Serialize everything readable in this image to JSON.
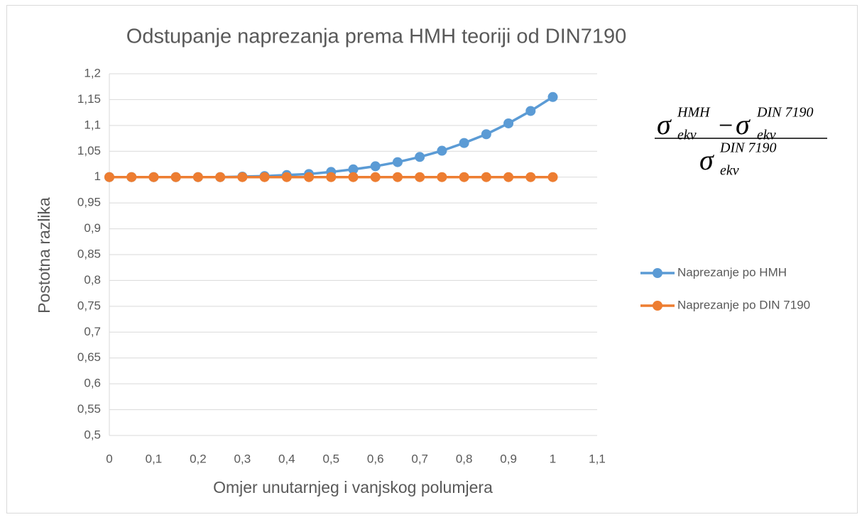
{
  "chart_data": {
    "type": "line",
    "title": "Odstupanje naprezanja prema HMH teoriji od DIN7190",
    "xlabel": "Omjer unutarnjeg i vanjskog polumjera",
    "ylabel": "Postotna razlika",
    "x": [
      0,
      0.05,
      0.1,
      0.15,
      0.2,
      0.25,
      0.3,
      0.35,
      0.4,
      0.45,
      0.5,
      0.55,
      0.6,
      0.65,
      0.7,
      0.75,
      0.8,
      0.85,
      0.9,
      0.95,
      1
    ],
    "series": [
      {
        "name": "Naprezanje po HMH",
        "color": "#5b9bd5",
        "values": [
          1,
          1,
          1,
          1,
          1,
          1,
          1.001,
          1.002,
          1.004,
          1.006,
          1.01,
          1.015,
          1.021,
          1.029,
          1.039,
          1.051,
          1.066,
          1.083,
          1.104,
          1.128,
          1.155
        ]
      },
      {
        "name": "Naprezanje po DIN 7190",
        "color": "#ed7d31",
        "values": [
          1,
          1,
          1,
          1,
          1,
          1,
          1,
          1,
          1,
          1,
          1,
          1,
          1,
          1,
          1,
          1,
          1,
          1,
          1,
          1,
          1
        ]
      }
    ],
    "xlim": [
      0,
      1.1
    ],
    "xticks": [
      0,
      {
        "value": 0.1,
        "label": "0,1"
      },
      {
        "value": 0.2,
        "label": "0,2"
      },
      {
        "value": 0.3,
        "label": "0,3"
      },
      {
        "value": 0.4,
        "label": "0,4"
      },
      {
        "value": 0.5,
        "label": "0,5"
      },
      {
        "value": 0.6,
        "label": "0,6"
      },
      {
        "value": 0.7,
        "label": "0,7"
      },
      {
        "value": 0.8,
        "label": "0,8"
      },
      {
        "value": 0.9,
        "label": "0,9"
      },
      1,
      {
        "value": 1.1,
        "label": "1,1"
      }
    ],
    "ylim": [
      0.5,
      1.2
    ],
    "yticks": [
      {
        "value": 0.5,
        "label": "0,5"
      },
      {
        "value": 0.55,
        "label": "0,55"
      },
      {
        "value": 0.6,
        "label": "0,6"
      },
      {
        "value": 0.65,
        "label": "0,65"
      },
      {
        "value": 0.7,
        "label": "0,7"
      },
      {
        "value": 0.75,
        "label": "0,75"
      },
      {
        "value": 0.8,
        "label": "0,8"
      },
      {
        "value": 0.85,
        "label": "0,85"
      },
      {
        "value": 0.9,
        "label": "0,9"
      },
      {
        "value": 0.95,
        "label": "0,95"
      },
      1,
      {
        "value": 1.05,
        "label": "1,05"
      },
      {
        "value": 1.1,
        "label": "1,1"
      },
      {
        "value": 1.15,
        "label": "1,15"
      },
      {
        "value": 1.2,
        "label": "1,2"
      }
    ],
    "grid": true,
    "legend": "right",
    "formula": {
      "symbol": "σ",
      "subscript": "ekv",
      "sup_hmh": "HMH",
      "sup_din": "DIN 7190",
      "operator": "−"
    }
  }
}
